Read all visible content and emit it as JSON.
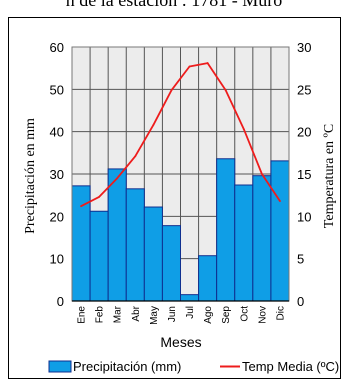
{
  "header": {
    "cut_title": "n de la estación : 1781 - Muro"
  },
  "chart_data": {
    "type": "bar+line",
    "categories": [
      "Ene",
      "Feb",
      "Mar",
      "Abr",
      "May",
      "Jun",
      "Jul",
      "Ago",
      "Sep",
      "Oct",
      "Nov",
      "Dic"
    ],
    "series": [
      {
        "name": "Precipitación (mm)",
        "kind": "bar",
        "axis": "left",
        "values": [
          27.2,
          21.2,
          31.2,
          26.5,
          22.2,
          17.8,
          1.5,
          10.7,
          33.6,
          27.4,
          29.6,
          33.1
        ]
      },
      {
        "name": "Temp Media (ºC)",
        "kind": "line",
        "axis": "right",
        "values": [
          11.2,
          12.3,
          14.5,
          17.1,
          20.8,
          24.9,
          27.7,
          28.1,
          24.9,
          20.3,
          15.0,
          11.8
        ]
      }
    ],
    "xlabel": "Meses",
    "ylabel": "Precipitación en mm",
    "y2label": "Temperatura en ºC",
    "ylim": [
      0,
      60
    ],
    "y2lim": [
      0,
      30
    ],
    "yticks": [
      "0",
      "10",
      "20",
      "30",
      "40",
      "50",
      "60"
    ],
    "y2ticks": [
      "0",
      "5",
      "10",
      "15",
      "20",
      "25",
      "30"
    ],
    "grid": true,
    "legend_position": "bottom",
    "colors": {
      "bar": "#0f9ee6",
      "bar_edge": "#0f2f8f",
      "line": "#ee1c1c",
      "plot_bg": "#ececec",
      "grid": "#555555"
    }
  }
}
